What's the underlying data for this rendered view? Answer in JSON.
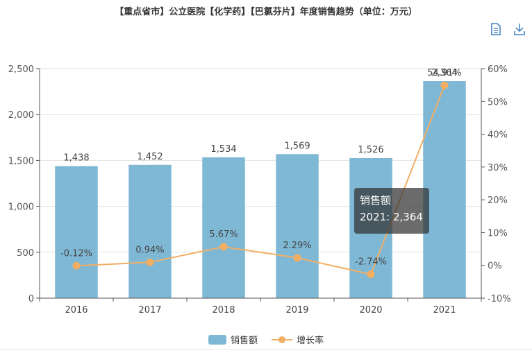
{
  "title": "【重点省市】公立医院【化学药】【巴氯芬片】年度销售趋势（单位：万元）",
  "toolbar": {
    "data_view_icon": "data-view-icon",
    "download_icon": "download-icon",
    "color": "#4a86c5"
  },
  "tooltip": {
    "series_name": "销售额",
    "text": "2021: 2,364"
  },
  "legend": {
    "bar_label": "销售额",
    "line_label": "增长率"
  },
  "chart_data": {
    "type": "bar",
    "categories": [
      "2016",
      "2017",
      "2018",
      "2019",
      "2020",
      "2021"
    ],
    "series": [
      {
        "name": "销售额",
        "type": "bar",
        "values": [
          1438,
          1452,
          1534,
          1569,
          1526,
          2364
        ],
        "labels": [
          "1,438",
          "1,452",
          "1,534",
          "1,569",
          "1,526",
          "2,364"
        ],
        "color": "#7fb8d5"
      },
      {
        "name": "增长率",
        "type": "line",
        "values": [
          -0.12,
          0.94,
          5.67,
          2.29,
          -2.74,
          54.91
        ],
        "labels": [
          "-0.12%",
          "0.94%",
          "5.67%",
          "2.29%",
          "-2.74%",
          "54.91%"
        ],
        "color": "#f2ae63"
      }
    ],
    "y_left": {
      "ylim": [
        0,
        2500
      ],
      "ticks": [
        0,
        500,
        1000,
        1500,
        2000,
        2500
      ],
      "tick_labels": [
        "0",
        "500",
        "1,000",
        "1,500",
        "2,000",
        "2,500"
      ]
    },
    "y_right": {
      "ylim": [
        -10,
        60
      ],
      "ticks": [
        -10,
        0,
        10,
        20,
        30,
        40,
        50,
        60
      ],
      "tick_labels": [
        "-10%",
        "0%",
        "10%",
        "20%",
        "30%",
        "40%",
        "50%",
        "60%"
      ]
    },
    "grid": true,
    "legend_position": "bottom-center"
  }
}
